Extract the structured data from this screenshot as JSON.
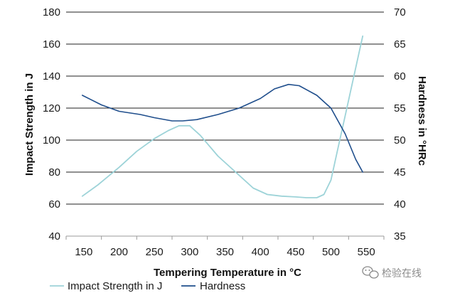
{
  "chart_data": {
    "type": "line",
    "xlabel": "Tempering Temperature in °C",
    "ylabel_left": "Impact Strength in J",
    "ylabel_right": "Hardness in °HRc",
    "x_ticks": [
      150,
      200,
      250,
      300,
      350,
      400,
      450,
      500,
      550
    ],
    "y_left_ticks": [
      40,
      60,
      80,
      100,
      120,
      140,
      160,
      180
    ],
    "y_right_ticks": [
      35,
      40,
      45,
      50,
      55,
      60,
      65,
      70
    ],
    "xlim": [
      125,
      575
    ],
    "ylim_left": [
      40,
      180
    ],
    "ylim_right": [
      35,
      70
    ],
    "grid": "horizontal",
    "legend": "bottom",
    "series": [
      {
        "name": "Impact Strength in J",
        "axis": "left",
        "color": "#9dd3d8",
        "points": [
          [
            148,
            65
          ],
          [
            170,
            72
          ],
          [
            200,
            83
          ],
          [
            225,
            93
          ],
          [
            250,
            101
          ],
          [
            270,
            106
          ],
          [
            285,
            109
          ],
          [
            300,
            109
          ],
          [
            315,
            103
          ],
          [
            340,
            90
          ],
          [
            370,
            78
          ],
          [
            390,
            70
          ],
          [
            410,
            66
          ],
          [
            430,
            65
          ],
          [
            450,
            64.5
          ],
          [
            465,
            64
          ],
          [
            480,
            64
          ],
          [
            490,
            66
          ],
          [
            500,
            75
          ],
          [
            510,
            95
          ],
          [
            520,
            115
          ],
          [
            530,
            135
          ],
          [
            540,
            155
          ],
          [
            545,
            165
          ]
        ]
      },
      {
        "name": "Hardness",
        "axis": "right",
        "color": "#1f4e8c",
        "points": [
          [
            148,
            57
          ],
          [
            175,
            55.5
          ],
          [
            200,
            54.5
          ],
          [
            230,
            54
          ],
          [
            250,
            53.5
          ],
          [
            275,
            53
          ],
          [
            290,
            53
          ],
          [
            310,
            53.2
          ],
          [
            340,
            54
          ],
          [
            370,
            55
          ],
          [
            400,
            56.5
          ],
          [
            420,
            58
          ],
          [
            440,
            58.7
          ],
          [
            455,
            58.5
          ],
          [
            480,
            57
          ],
          [
            500,
            55
          ],
          [
            520,
            51
          ],
          [
            535,
            47
          ],
          [
            545,
            45
          ]
        ]
      }
    ]
  },
  "watermark": {
    "text": "检验在线",
    "icon": "wechat-icon"
  }
}
